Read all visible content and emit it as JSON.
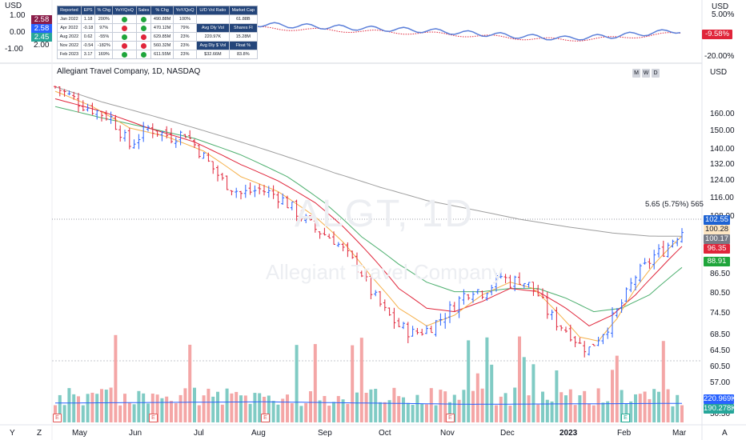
{
  "chart_data": {
    "type": "candlestick",
    "legend_title": "Allegiant Travel Company, 1D, NASDAQ",
    "watermark_symbol": "ALGT, 1D",
    "watermark_name": "Allegiant Travel Company",
    "interval_buttons": [
      "M",
      "W",
      "D"
    ],
    "currency": "USD",
    "price_axis": {
      "ticks": [
        "160.00",
        "150.00",
        "140.00",
        "132.00",
        "124.00",
        "116.00",
        "108.00",
        "86.50",
        "80.50",
        "74.50",
        "68.50",
        "64.50",
        "60.50",
        "57.00",
        "53.50",
        "50.50"
      ],
      "scale": "log",
      "range": [
        49,
        185
      ]
    },
    "x_labels": [
      "May",
      "Jun",
      "Jul",
      "Aug",
      "Sep",
      "Oct",
      "Nov",
      "Dec",
      "2023",
      "Feb",
      "Mar"
    ],
    "annotation": "5.65 (5.75%) 565",
    "price_badges": [
      {
        "value": "102.55",
        "color": "#1e63d3"
      },
      {
        "value": "100.28",
        "color": "#fde6c4"
      },
      {
        "value": "100.17",
        "color": "#787b86"
      },
      {
        "value": "96.35",
        "color": "#e0253a"
      },
      {
        "value": "88.91",
        "color": "#1fa53b"
      },
      {
        "value": "220.969K",
        "color": "#2962ff"
      },
      {
        "value": "190.278K",
        "color": "#26a69a"
      }
    ],
    "close_path": [
      [
        0,
        178
      ],
      [
        6,
        166
      ],
      [
        12,
        158
      ],
      [
        16,
        142
      ],
      [
        20,
        152
      ],
      [
        25,
        147
      ],
      [
        28,
        149
      ],
      [
        32,
        136
      ],
      [
        36,
        124
      ],
      [
        40,
        118
      ],
      [
        44,
        120
      ],
      [
        48,
        117
      ],
      [
        52,
        110
      ],
      [
        56,
        103
      ],
      [
        60,
        99
      ],
      [
        63,
        93
      ],
      [
        66,
        87
      ],
      [
        68,
        81
      ],
      [
        71,
        75
      ],
      [
        74,
        71
      ],
      [
        77,
        69
      ],
      [
        80,
        70
      ],
      [
        83,
        73
      ],
      [
        86,
        77
      ],
      [
        88,
        80
      ],
      [
        90,
        82
      ],
      [
        92,
        81
      ],
      [
        94,
        83
      ],
      [
        96,
        86
      ],
      [
        98,
        84
      ],
      [
        100,
        85
      ],
      [
        102,
        83
      ],
      [
        104,
        80
      ],
      [
        106,
        75
      ],
      [
        108,
        72
      ],
      [
        111,
        69
      ],
      [
        113,
        66
      ],
      [
        115,
        65
      ],
      [
        117,
        68
      ],
      [
        119,
        71
      ],
      [
        121,
        75
      ],
      [
        123,
        80
      ],
      [
        125,
        86
      ],
      [
        127,
        89
      ],
      [
        129,
        93
      ],
      [
        131,
        95
      ],
      [
        133,
        99
      ],
      [
        135,
        102.5
      ]
    ],
    "ema_fast": [
      [
        0,
        175
      ],
      [
        8,
        165
      ],
      [
        16,
        152
      ],
      [
        24,
        147
      ],
      [
        32,
        139
      ],
      [
        40,
        126
      ],
      [
        48,
        119
      ],
      [
        56,
        108
      ],
      [
        62,
        98
      ],
      [
        68,
        86
      ],
      [
        74,
        76
      ],
      [
        80,
        71
      ],
      [
        86,
        74
      ],
      [
        92,
        80
      ],
      [
        98,
        84
      ],
      [
        103,
        82
      ],
      [
        108,
        75
      ],
      [
        113,
        68
      ],
      [
        117,
        67
      ],
      [
        121,
        73
      ],
      [
        125,
        82
      ],
      [
        129,
        90
      ],
      [
        133,
        97
      ],
      [
        135,
        100.3
      ]
    ],
    "ema_mid": [
      [
        0,
        170
      ],
      [
        10,
        162
      ],
      [
        20,
        152
      ],
      [
        30,
        144
      ],
      [
        40,
        132
      ],
      [
        48,
        124
      ],
      [
        56,
        114
      ],
      [
        62,
        104
      ],
      [
        68,
        93
      ],
      [
        74,
        82
      ],
      [
        80,
        76
      ],
      [
        86,
        75
      ],
      [
        92,
        78
      ],
      [
        98,
        82
      ],
      [
        104,
        81
      ],
      [
        110,
        76
      ],
      [
        115,
        71
      ],
      [
        120,
        74
      ],
      [
        125,
        80
      ],
      [
        130,
        88
      ],
      [
        135,
        96.4
      ]
    ],
    "ema_slow": [
      [
        0,
        165
      ],
      [
        10,
        158
      ],
      [
        20,
        152
      ],
      [
        30,
        146
      ],
      [
        40,
        137
      ],
      [
        50,
        126
      ],
      [
        58,
        114
      ],
      [
        66,
        100
      ],
      [
        74,
        90
      ],
      [
        80,
        84
      ],
      [
        86,
        81
      ],
      [
        92,
        81
      ],
      [
        98,
        82
      ],
      [
        104,
        82
      ],
      [
        110,
        79
      ],
      [
        116,
        75
      ],
      [
        122,
        76
      ],
      [
        128,
        80
      ],
      [
        135,
        88.9
      ]
    ],
    "ma_long": [
      [
        0,
        178
      ],
      [
        10,
        168
      ],
      [
        20,
        160
      ],
      [
        30,
        152
      ],
      [
        40,
        144
      ],
      [
        50,
        136
      ],
      [
        60,
        128
      ],
      [
        70,
        121
      ],
      [
        80,
        115
      ],
      [
        90,
        111
      ],
      [
        100,
        107
      ],
      [
        110,
        104
      ],
      [
        120,
        101.5
      ],
      [
        128,
        100.3
      ],
      [
        135,
        100.2
      ]
    ],
    "volume_avg_levels": [
      0.42,
      0.46,
      0.38,
      0.41
    ],
    "mini_panel": {
      "left_values": [
        "1.00",
        "0.00",
        "-1.00",
        "2.00"
      ],
      "left_badges": [
        {
          "value": "2.58",
          "color": "#8a1c48"
        },
        {
          "value": "2.58",
          "color": "#2962ff"
        },
        {
          "value": "2.45",
          "color": "#26a69a"
        }
      ],
      "right_labels": [
        "USD",
        "5.00%",
        "-20.00%"
      ],
      "right_badge": {
        "value": "-9.58%",
        "color": "#e0253a"
      }
    },
    "fundamentals_table": {
      "headers": [
        "Reported",
        "EPS",
        "% Chg",
        "YoY/QoQ",
        "Sales",
        "% Chg",
        "YoY/QoQ",
        "U/D Vol Ratio",
        "Market Cap"
      ],
      "rows": [
        [
          "Jan 2022",
          "1.18",
          "200%",
          "g",
          "g",
          "490.88M",
          "100%",
          "g",
          "g",
          "",
          "61.88B"
        ],
        [
          "Apr 2022",
          "-0.18",
          "97%",
          "r",
          "g",
          "470.12M",
          "79%",
          "g",
          "g",
          "",
          ""
        ],
        [
          "Aug 2022",
          "0.62",
          "-55%",
          "g",
          "r",
          "629.85M",
          "23%",
          "g",
          "g",
          "",
          ""
        ],
        [
          "Nov 2022",
          "-0.54",
          "-182%",
          "r",
          "r",
          "560.32M",
          "23%",
          "g",
          "g",
          "",
          ""
        ],
        [
          "Feb 2023",
          "3.17",
          "169%",
          "g",
          "g",
          "611.55M",
          "23%",
          "g",
          "g",
          "",
          ""
        ]
      ],
      "side_cells": [
        [
          "Avg Dly Vol",
          "Shares Fl"
        ],
        [
          "220.97K",
          "15.28M"
        ],
        [
          "Avg Dly $ Vol",
          "Float %"
        ],
        [
          "$32.66M",
          "83.8%"
        ]
      ]
    }
  },
  "toolbar": {
    "y_label": "Y",
    "z_label": "Z",
    "a_label": "A",
    "earnings_label": "E"
  }
}
